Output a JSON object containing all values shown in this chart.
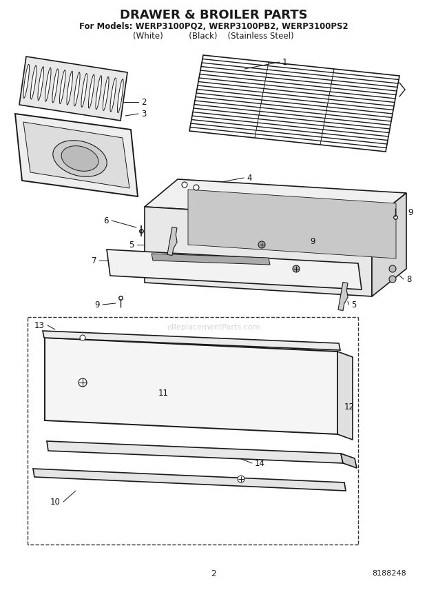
{
  "title": "DRAWER & BROILER PARTS",
  "subtitle": "For Models: WERP3100PQ2, WERP3100PB2, WERP3100PS2",
  "subtitle2": "(White)          (Black)    (Stainless Steel)",
  "page_number": "2",
  "part_number": "8188248",
  "background_color": "#ffffff",
  "line_color": "#1a1a1a",
  "title_fontsize": 13,
  "subtitle_fontsize": 8,
  "watermark": "eReplacementParts.com"
}
